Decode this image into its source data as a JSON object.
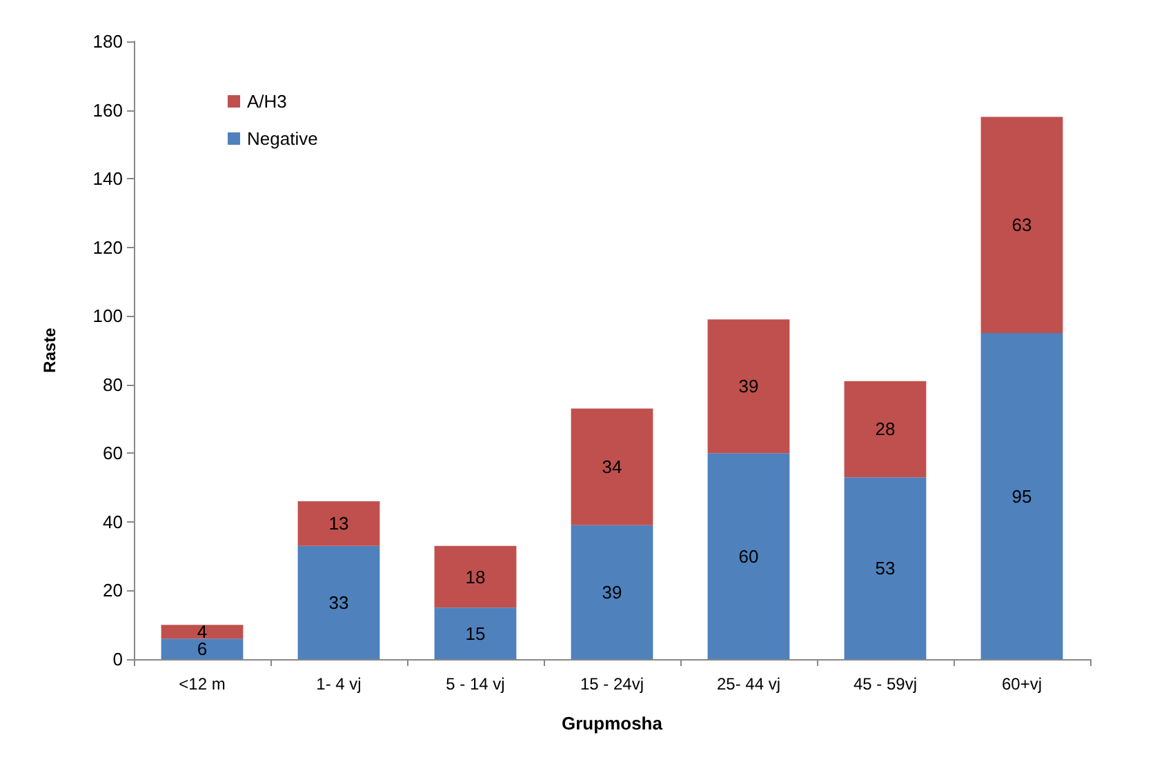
{
  "chart_data": {
    "type": "bar",
    "stacked": true,
    "xlabel": "Grupmosha",
    "ylabel": "Raste",
    "categories": [
      "<12 m",
      "1- 4 vj",
      "5 - 14 vj",
      "15 - 24vj",
      "25- 44 vj",
      "45 - 59vj",
      "60+vj"
    ],
    "series": [
      {
        "name": "Negative",
        "color": "#4f81bd",
        "values": [
          6,
          33,
          15,
          39,
          60,
          53,
          95
        ]
      },
      {
        "name": "A/H3",
        "color": "#c0504d",
        "values": [
          4,
          13,
          18,
          34,
          39,
          28,
          63
        ]
      }
    ],
    "ylim": [
      0,
      180
    ],
    "yticks": [
      0,
      20,
      40,
      60,
      80,
      100,
      120,
      140,
      160,
      180
    ],
    "grid": false,
    "legend": "top left",
    "data_labels": true
  }
}
